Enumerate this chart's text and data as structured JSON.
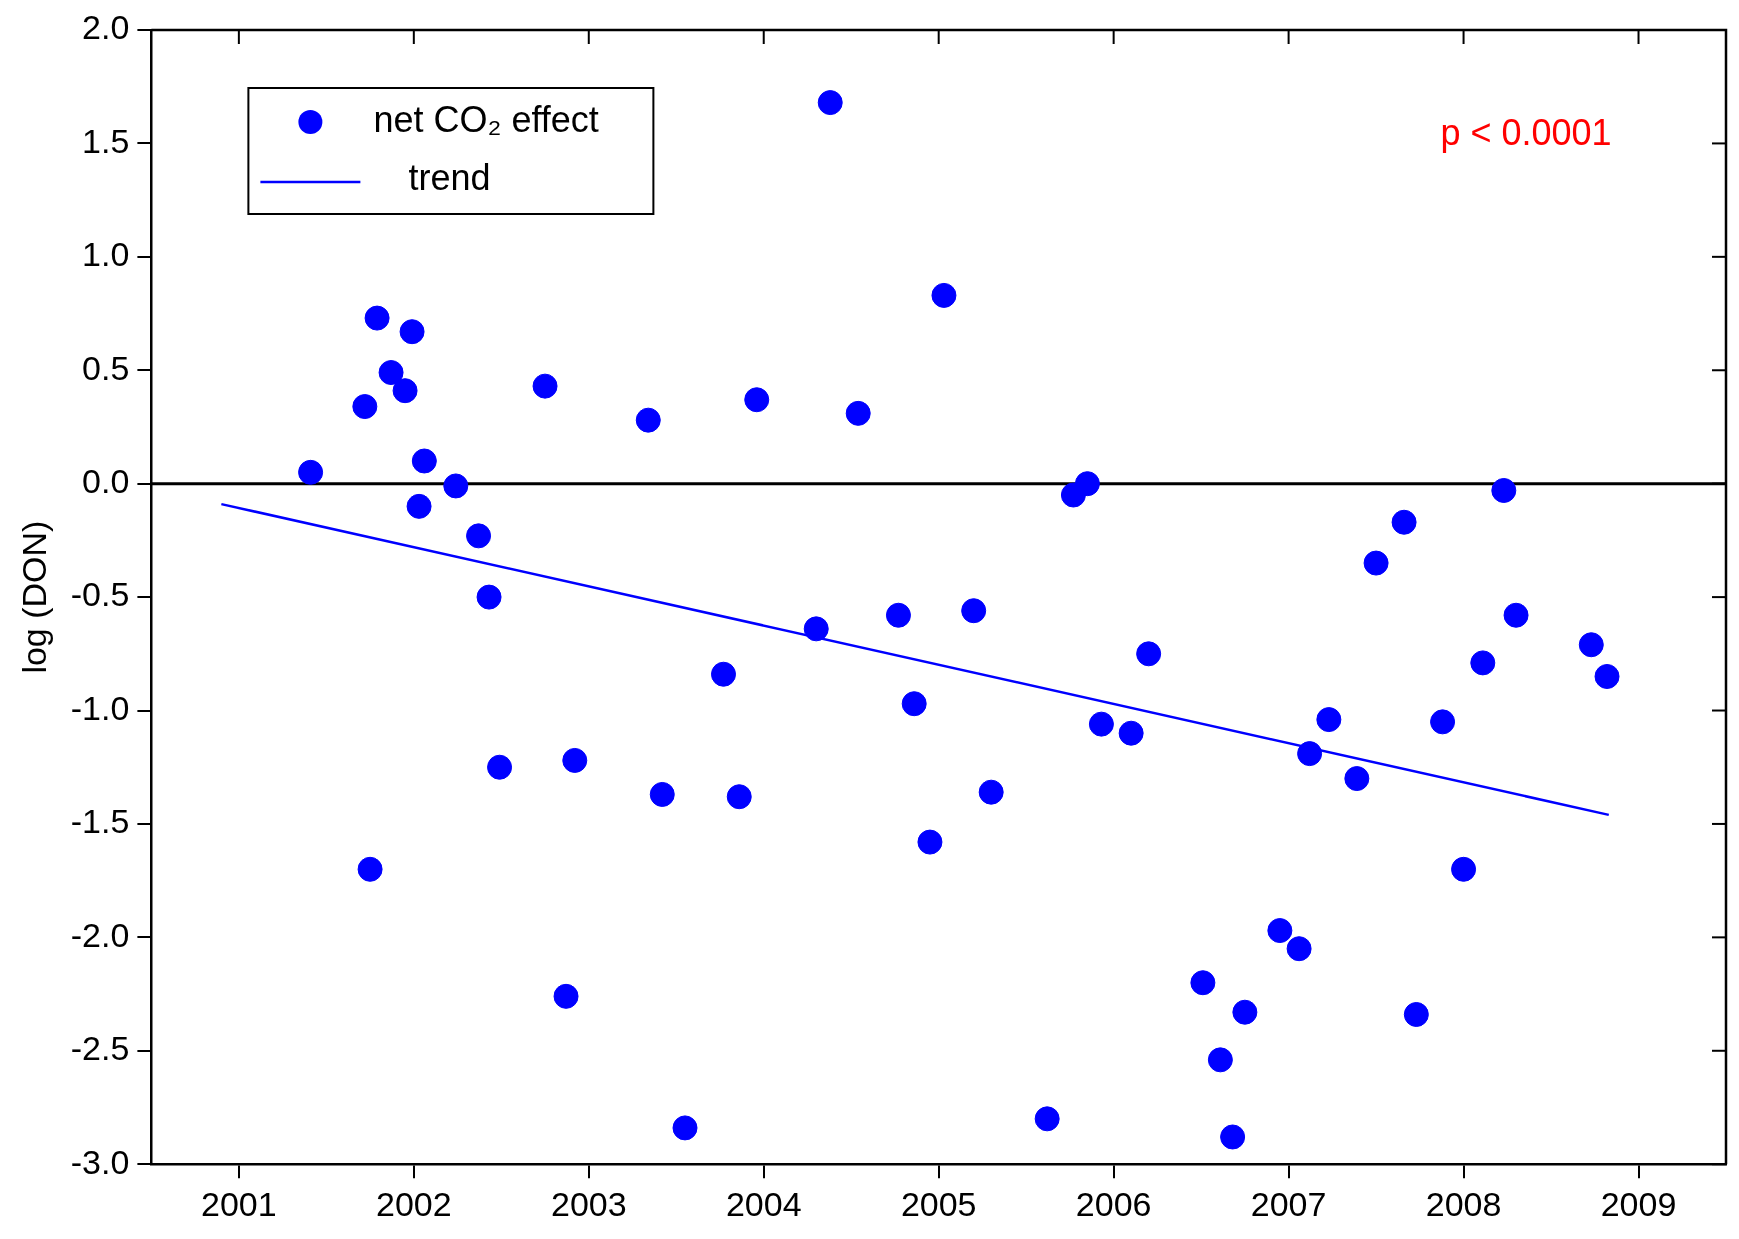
{
  "chart_data": {
    "type": "scatter",
    "ylabel": "log (DON)",
    "xlim": [
      2000.5,
      2009.5
    ],
    "ylim": [
      -3.0,
      2.0
    ],
    "xticks": [
      2001,
      2002,
      2003,
      2004,
      2005,
      2006,
      2007,
      2008,
      2009
    ],
    "yticks": [
      {
        "value": -3,
        "label": "-3.0"
      },
      {
        "value": -2.5,
        "label": "-2.5"
      },
      {
        "value": -2,
        "label": "-2.0"
      },
      {
        "value": -1.5,
        "label": "-1.5"
      },
      {
        "value": -1,
        "label": "-1.0"
      },
      {
        "value": -0.5,
        "label": "-0.5"
      },
      {
        "value": 0,
        "label": "0.0"
      },
      {
        "value": 0.5,
        "label": "0.5"
      },
      {
        "value": 1,
        "label": "1.0"
      },
      {
        "value": 1.5,
        "label": "1.5"
      },
      {
        "value": 2,
        "label": "2.0"
      }
    ],
    "grid": false,
    "legend": "top left",
    "marker": "circle",
    "ref_lines": [
      {
        "axis": "y",
        "value": 0,
        "color": "#000000"
      }
    ],
    "annotations": [
      "p < 0.0001"
    ],
    "series": [
      {
        "name": "net CO₂ effect",
        "color": "#0000ff",
        "x": [
          2001.41,
          2001.72,
          2001.75,
          2001.79,
          2001.87,
          2001.95,
          2001.99,
          2002.03,
          2002.06,
          2002.24,
          2002.37,
          2002.43,
          2002.49,
          2002.75,
          2002.87,
          2002.92,
          2003.34,
          2003.42,
          2003.55,
          2003.77,
          2003.86,
          2003.96,
          2004.3,
          2004.38,
          2004.54,
          2004.77,
          2004.86,
          2004.95,
          2005.03,
          2005.2,
          2005.3,
          2005.62,
          2005.77,
          2005.85,
          2005.93,
          2006.1,
          2006.2,
          2006.51,
          2006.61,
          2006.68,
          2006.75,
          2006.95,
          2007.06,
          2007.12,
          2007.23,
          2007.39,
          2007.5,
          2007.66,
          2007.73,
          2007.88,
          2008.0,
          2008.11,
          2008.23,
          2008.3,
          2008.73,
          2008.82
        ],
        "values": [
          0.05,
          0.34,
          -1.7,
          0.73,
          0.49,
          0.41,
          0.67,
          -0.1,
          0.1,
          -0.01,
          -0.23,
          -0.5,
          -1.25,
          0.43,
          -2.26,
          -1.22,
          0.28,
          -1.37,
          -2.84,
          -0.84,
          -1.38,
          0.37,
          -0.64,
          1.68,
          0.31,
          -0.58,
          -0.97,
          -1.58,
          0.83,
          -0.56,
          -1.36,
          -2.8,
          -0.05,
          0.0,
          -1.06,
          -1.1,
          -0.75,
          -2.2,
          -2.54,
          -2.88,
          -2.33,
          -1.97,
          -2.05,
          -1.19,
          -1.04,
          -1.3,
          -0.35,
          -0.17,
          -2.34,
          -1.05,
          -1.7,
          -0.79,
          -0.03,
          -0.58,
          -0.71,
          -0.85
        ]
      },
      {
        "name": "trend",
        "type": "line",
        "color": "#0000ff",
        "line_style": "solid",
        "marker": "none",
        "x": [
          2000.9,
          2008.83
        ],
        "values": [
          -0.09,
          -1.46
        ]
      }
    ]
  }
}
